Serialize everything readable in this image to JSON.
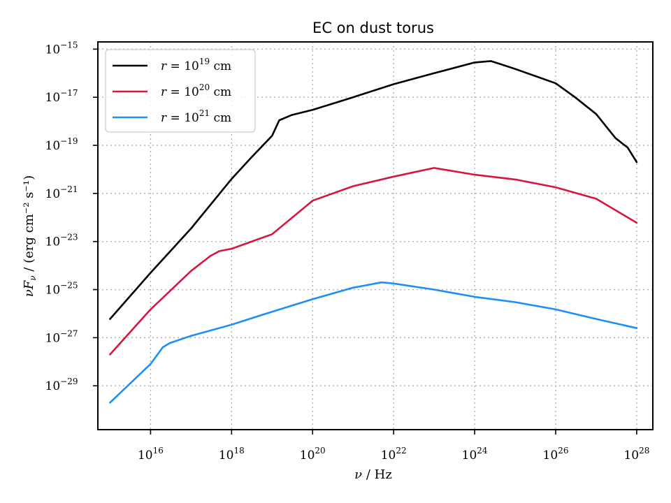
{
  "chart_data": {
    "type": "line",
    "title": "EC on dust torus",
    "xlabel_var": "ν",
    "xlabel_unit": "Hz",
    "ylabel_var": "νF",
    "ylabel_var_sub": "ν",
    "ylabel_unit": "erg cm⁻² s⁻¹",
    "x_scale": "log",
    "y_scale": "log",
    "xlim": [
      500000000000000.0,
      2.5e+28
    ],
    "ylim": [
      1.5e-31,
      2e-15
    ],
    "grid": true,
    "legend_position": "top-left",
    "xticks": [
      {
        "value": 1e+16,
        "base": "10",
        "exp": "16"
      },
      {
        "value": 1e+18,
        "base": "10",
        "exp": "18"
      },
      {
        "value": 1e+20,
        "base": "10",
        "exp": "20"
      },
      {
        "value": 1e+22,
        "base": "10",
        "exp": "22"
      },
      {
        "value": 1e+24,
        "base": "10",
        "exp": "24"
      },
      {
        "value": 1e+26,
        "base": "10",
        "exp": "26"
      },
      {
        "value": 1e+28,
        "base": "10",
        "exp": "28"
      }
    ],
    "yticks": [
      {
        "value": 1e-29,
        "base": "10",
        "exp": "−29"
      },
      {
        "value": 1e-27,
        "base": "10",
        "exp": "−27"
      },
      {
        "value": 1e-25,
        "base": "10",
        "exp": "−25"
      },
      {
        "value": 1e-23,
        "base": "10",
        "exp": "−23"
      },
      {
        "value": 1e-21,
        "base": "10",
        "exp": "−21"
      },
      {
        "value": 1e-19,
        "base": "10",
        "exp": "−19"
      },
      {
        "value": 1e-17,
        "base": "10",
        "exp": "−17"
      },
      {
        "value": 1e-15,
        "base": "10",
        "exp": "−15"
      }
    ],
    "series": [
      {
        "name_var": "r",
        "name_rest": " = 10",
        "name_exp": "19",
        "name_unit": " cm",
        "color": "#000000",
        "points": [
          [
            1000000000000000.0,
            6e-27
          ],
          [
            1e+16,
            5e-25
          ],
          [
            1e+17,
            3.5e-23
          ],
          [
            1e+18,
            4e-21
          ],
          [
            3e+18,
            3e-20
          ],
          [
            1e+19,
            2.5e-19
          ],
          [
            1.5e+19,
            1.1e-18
          ],
          [
            3e+19,
            1.8e-18
          ],
          [
            1e+20,
            3e-18
          ],
          [
            1e+21,
            1e-17
          ],
          [
            1e+22,
            3.5e-17
          ],
          [
            1e+23,
            1e-16
          ],
          [
            1e+24,
            2.8e-16
          ],
          [
            2.5e+24,
            3.2e-16
          ],
          [
            4e+24,
            2.5e-16
          ],
          [
            1e+25,
            1.5e-16
          ],
          [
            1e+26,
            3.8e-17
          ],
          [
            3e+26,
            1e-17
          ],
          [
            1e+27,
            2e-18
          ],
          [
            3e+27,
            2e-19
          ],
          [
            6e+27,
            8e-20
          ],
          [
            1e+28,
            2e-20
          ]
        ]
      },
      {
        "name_var": "r",
        "name_rest": " = 10",
        "name_exp": "20",
        "name_unit": " cm",
        "color": "#d6163f",
        "points": [
          [
            1000000000000000.0,
            2e-28
          ],
          [
            1e+16,
            1.5e-26
          ],
          [
            1e+17,
            6e-25
          ],
          [
            3e+17,
            2.5e-24
          ],
          [
            5e+17,
            4e-24
          ],
          [
            1e+18,
            5e-24
          ],
          [
            1e+19,
            2e-23
          ],
          [
            1e+20,
            5e-22
          ],
          [
            1e+21,
            2e-21
          ],
          [
            1e+22,
            5e-21
          ],
          [
            1e+23,
            1.15e-20
          ],
          [
            1e+24,
            6e-21
          ],
          [
            1e+25,
            3.8e-21
          ],
          [
            1e+26,
            1.8e-21
          ],
          [
            1e+27,
            6e-22
          ],
          [
            1e+28,
            6e-23
          ]
        ]
      },
      {
        "name_var": "r",
        "name_rest": " = 10",
        "name_exp": "21",
        "name_unit": " cm",
        "color": "#1e8ff5",
        "points": [
          [
            1000000000000000.0,
            2e-30
          ],
          [
            1e+16,
            8e-29
          ],
          [
            2e+16,
            4e-28
          ],
          [
            3e+16,
            6e-28
          ],
          [
            1e+17,
            1.2e-27
          ],
          [
            1e+18,
            3.5e-27
          ],
          [
            1e+19,
            1.2e-26
          ],
          [
            1e+20,
            4e-26
          ],
          [
            1e+21,
            1.2e-25
          ],
          [
            5e+21,
            2e-25
          ],
          [
            1e+22,
            1.8e-25
          ],
          [
            1e+23,
            1e-25
          ],
          [
            1e+24,
            5e-26
          ],
          [
            1e+25,
            3e-26
          ],
          [
            1e+26,
            1.5e-26
          ],
          [
            1e+27,
            6e-27
          ],
          [
            1e+28,
            2.5e-27
          ]
        ]
      }
    ]
  }
}
